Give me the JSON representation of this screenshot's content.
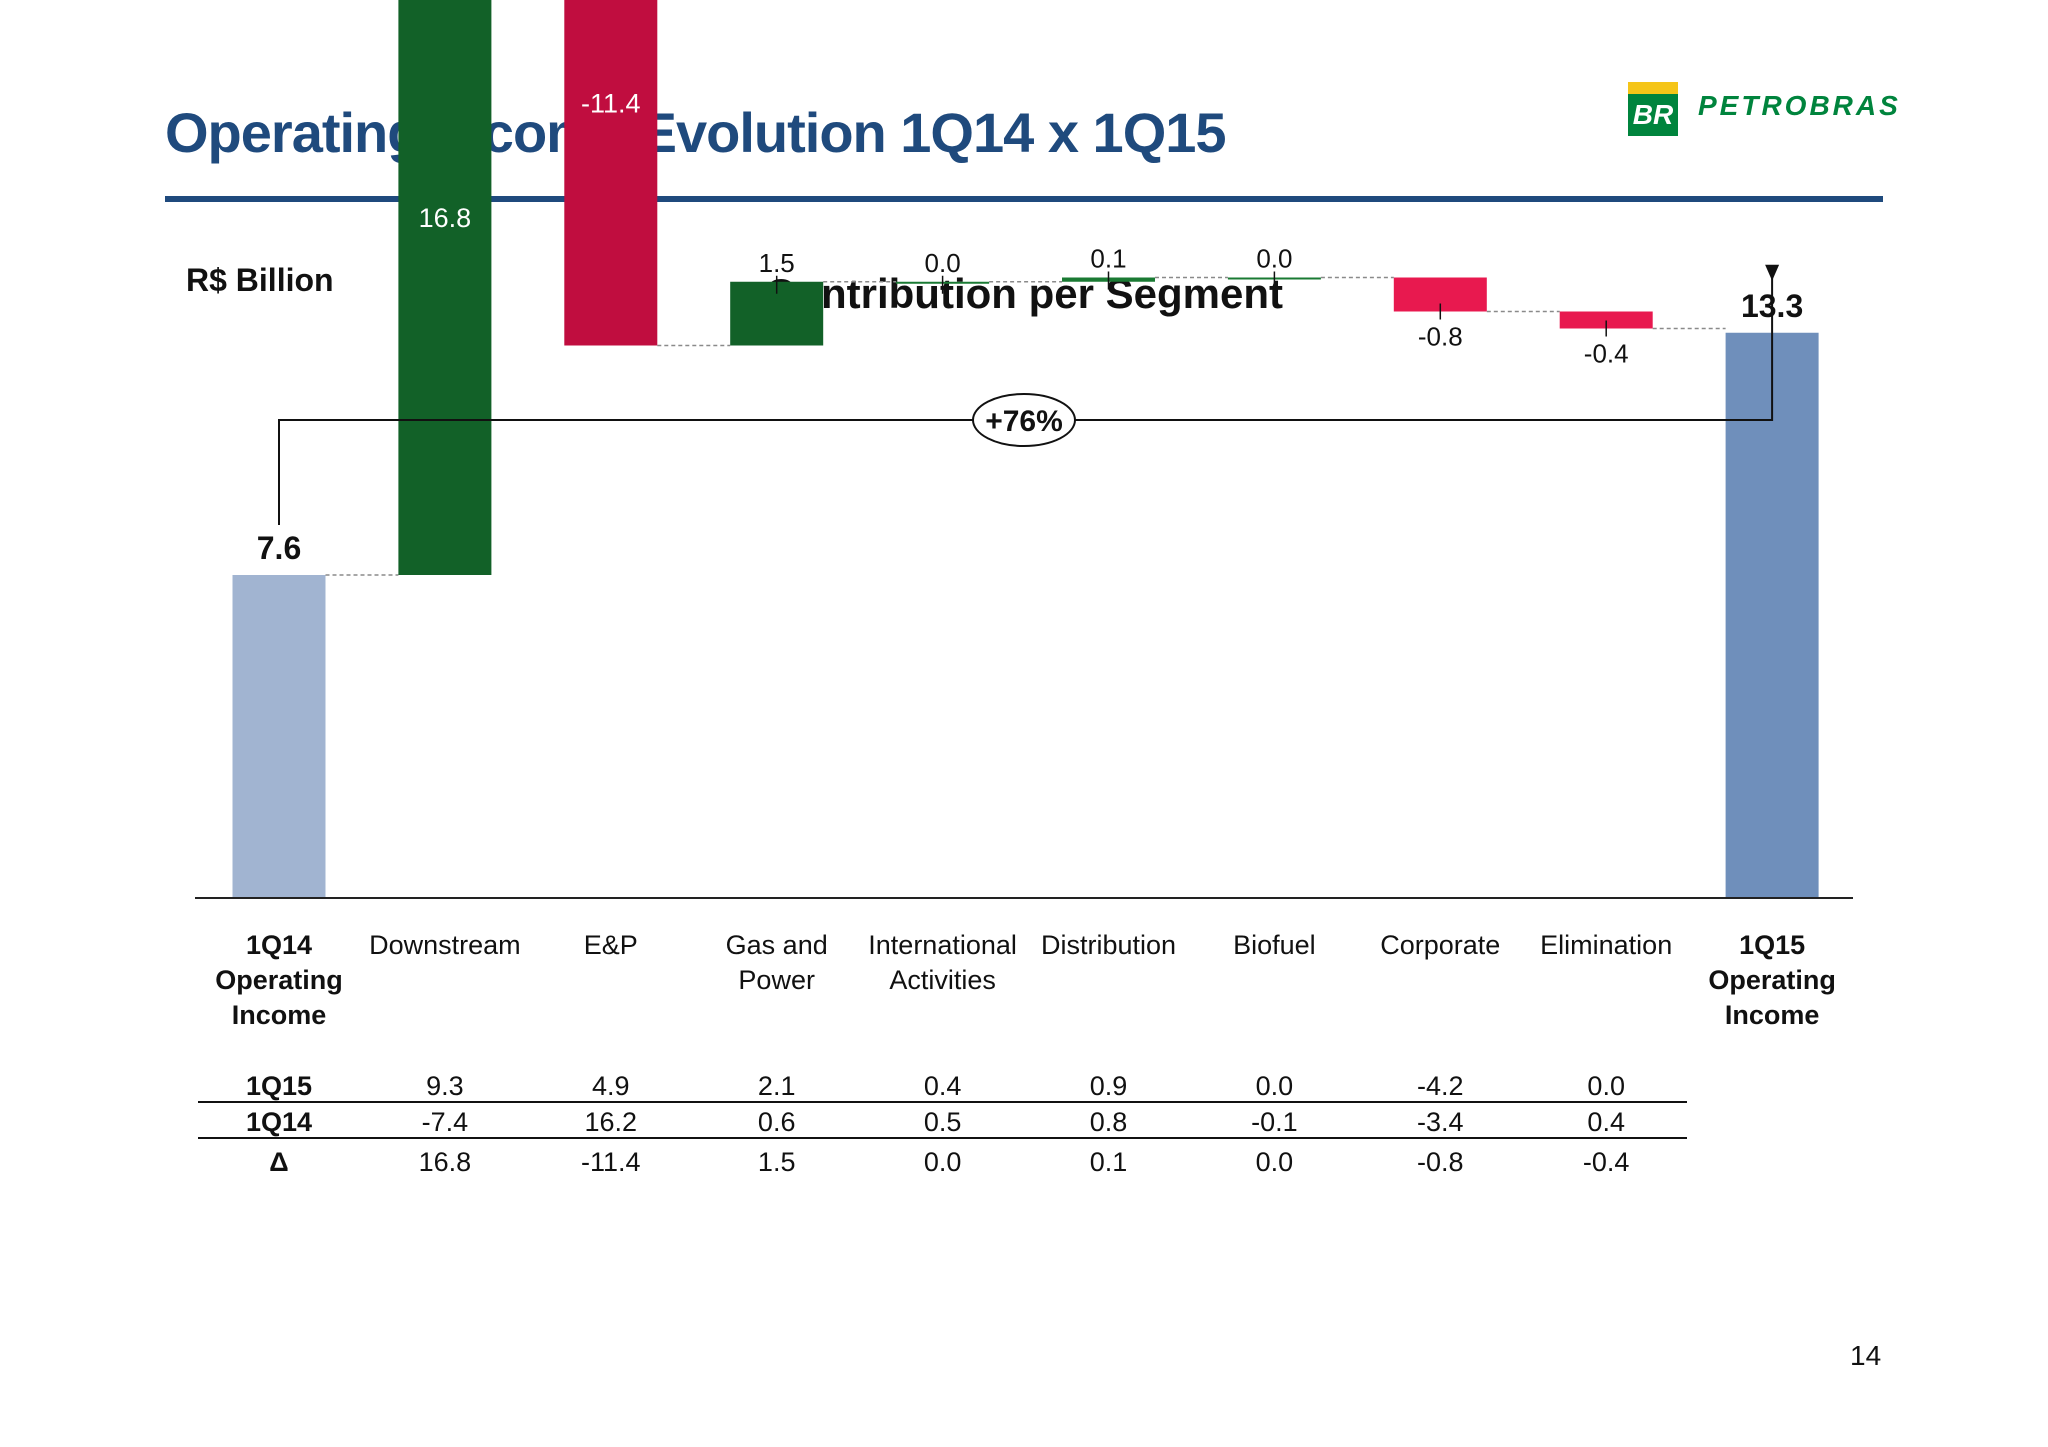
{
  "header": {
    "title": "Operating Income Evolution 1Q14 x 1Q15",
    "logo_text": "PETROBRAS",
    "logo_mark": "BR"
  },
  "unit_label": "R$ Billion",
  "page_number": "14",
  "colors": {
    "title_blue": "#1f4a7d",
    "start_bar": "#a1b4d1",
    "end_bar": "#6f8fbb",
    "positive_large": "#126128",
    "negative_large": "#c00d3f",
    "negative_small": "#e8194f",
    "positive_small": "#1a7a33"
  },
  "chart_data": {
    "type": "waterfall",
    "title": "Contribution per Segment",
    "categories": [
      "1Q14\nOperating\nIncome",
      "Downstream",
      "E&P",
      "Gas and\nPower",
      "International\nActivities",
      "Distribution",
      "Biofuel",
      "Corporate",
      "Elimination",
      "1Q15\nOperating\nIncome"
    ],
    "bars": [
      {
        "kind": "total",
        "value": 7.6,
        "label": "7.6"
      },
      {
        "kind": "delta",
        "value": 16.8,
        "label": "16.8"
      },
      {
        "kind": "delta",
        "value": -11.4,
        "label": "-11.4"
      },
      {
        "kind": "delta",
        "value": 1.5,
        "label": "1.5"
      },
      {
        "kind": "delta",
        "value": 0.0,
        "label": "0.0"
      },
      {
        "kind": "delta",
        "value": 0.1,
        "label": "0.1"
      },
      {
        "kind": "delta",
        "value": 0.0,
        "label": "0.0"
      },
      {
        "kind": "delta",
        "value": -0.8,
        "label": "-0.8"
      },
      {
        "kind": "delta",
        "value": -0.4,
        "label": "-0.4"
      },
      {
        "kind": "total",
        "value": 13.3,
        "label": "13.3"
      }
    ],
    "growth_annotation": "+76%",
    "table": {
      "rows": [
        {
          "label": "1Q15",
          "values": [
            "9.3",
            "4.9",
            "2.1",
            "0.4",
            "0.9",
            "0.0",
            "-4.2",
            "0.0"
          ]
        },
        {
          "label": "1Q14",
          "values": [
            "-7.4",
            "16.2",
            "0.6",
            "0.5",
            "0.8",
            "-0.1",
            "-3.4",
            "0.4"
          ]
        },
        {
          "label": "Δ",
          "values": [
            "16.8",
            "-11.4",
            "1.5",
            "0.0",
            "0.1",
            "0.0",
            "-0.8",
            "-0.4"
          ]
        }
      ]
    }
  }
}
